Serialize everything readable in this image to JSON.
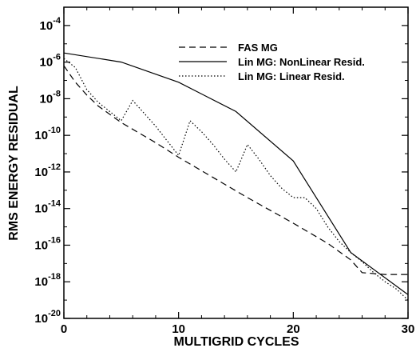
{
  "chart_data": {
    "type": "line",
    "title": "",
    "xlabel": "MULTIGRID CYCLES",
    "ylabel": "RMS ENERGY RESIDUAL",
    "xlim": [
      0,
      30
    ],
    "ylim_exponent": [
      -20,
      -3
    ],
    "yscale": "log",
    "grid": false,
    "legend_position": "top-right",
    "x_ticks": [
      0,
      10,
      20,
      30
    ],
    "y_tick_exponents": [
      -20,
      -18,
      -16,
      -14,
      -12,
      -10,
      -8,
      -6,
      -4
    ],
    "y_tick_base": "10",
    "series": [
      {
        "name": "FAS MG",
        "dash": "dashed",
        "x": [
          0,
          1,
          2,
          3,
          5,
          8,
          10,
          13,
          16,
          20,
          23,
          25,
          26,
          28,
          30
        ],
        "y_log10": [
          -6.2,
          -7.1,
          -7.8,
          -8.4,
          -9.3,
          -10.4,
          -11.2,
          -12.3,
          -13.4,
          -14.8,
          -15.9,
          -16.8,
          -17.5,
          -17.6,
          -17.6
        ]
      },
      {
        "name": "Lin MG: NonLinear Resid.",
        "dash": "solid",
        "x": [
          0,
          5,
          10,
          15,
          20,
          25,
          30
        ],
        "y_log10": [
          -5.5,
          -6.0,
          -7.1,
          -8.7,
          -11.4,
          -16.4,
          -18.7
        ]
      },
      {
        "name": "Lin MG: Linear Resid.",
        "dash": "dotted",
        "x": [
          0,
          1,
          2,
          3,
          4,
          5,
          6,
          7,
          8,
          9,
          10,
          11,
          12,
          13,
          14,
          15,
          16,
          17,
          18,
          19,
          20,
          21,
          22,
          23,
          24,
          25,
          26,
          27,
          28,
          29,
          30
        ],
        "y_log10": [
          -5.8,
          -6.3,
          -7.5,
          -8.2,
          -8.7,
          -9.2,
          -8.1,
          -8.8,
          -9.5,
          -10.3,
          -11.1,
          -9.2,
          -9.8,
          -10.5,
          -11.3,
          -12.0,
          -10.5,
          -11.3,
          -12.2,
          -12.9,
          -13.4,
          -13.4,
          -14.0,
          -15.0,
          -15.8,
          -16.4,
          -16.9,
          -17.5,
          -18.0,
          -18.4,
          -19.0
        ]
      }
    ]
  }
}
